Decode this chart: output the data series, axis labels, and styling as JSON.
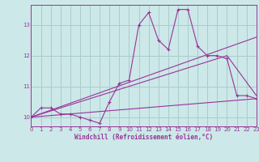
{
  "bg_color": "#cce8e8",
  "grid_color": "#aacccc",
  "line_color": "#993399",
  "x_min": 0,
  "x_max": 23,
  "y_min": 9.7,
  "y_max": 13.65,
  "y_ticks": [
    10,
    11,
    12,
    13
  ],
  "x_ticks": [
    0,
    1,
    2,
    3,
    4,
    5,
    6,
    7,
    8,
    9,
    10,
    11,
    12,
    13,
    14,
    15,
    16,
    17,
    18,
    19,
    20,
    21,
    22,
    23
  ],
  "xlabel": "Windchill (Refroidissement éolien,°C)",
  "series1_x": [
    0,
    1,
    2,
    3,
    4,
    5,
    6,
    7,
    8,
    9,
    10,
    11,
    12,
    13,
    14,
    15,
    16,
    17,
    18,
    19,
    20,
    21,
    22,
    23
  ],
  "series1_y": [
    10.0,
    10.3,
    10.3,
    10.1,
    10.1,
    10.0,
    9.9,
    9.8,
    10.5,
    11.1,
    11.2,
    13.0,
    13.4,
    12.5,
    12.2,
    13.5,
    13.5,
    12.3,
    12.0,
    12.0,
    11.9,
    10.7,
    10.7,
    10.6
  ],
  "series2_x": [
    0,
    23
  ],
  "series2_y": [
    10.0,
    12.6
  ],
  "series3_x": [
    0,
    23
  ],
  "series3_y": [
    10.0,
    10.6
  ],
  "series4_x": [
    0,
    20,
    23
  ],
  "series4_y": [
    10.0,
    12.0,
    10.7
  ]
}
